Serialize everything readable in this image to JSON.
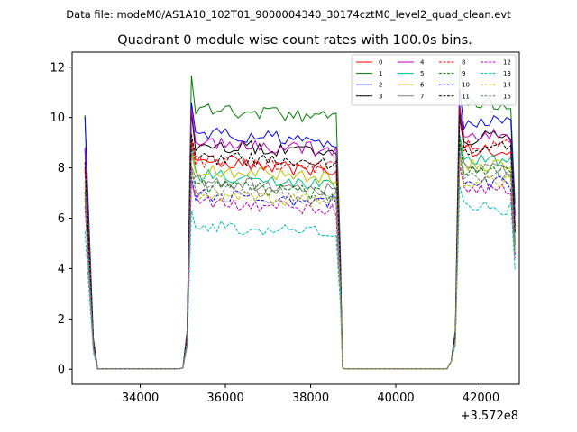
{
  "file_label": "Data file: modeM0/AS1A10_102T01_9000004340_30174cztM0_level2_quad_clean.evt",
  "chart_data": {
    "type": "line",
    "title": "Quadrant 0 module wise count rates with 100.0s bins.",
    "xlabel": "",
    "ylabel": "",
    "x_offset_label": "+3.572e8",
    "xlim": [
      32400,
      42900
    ],
    "ylim": [
      -0.6,
      12.6
    ],
    "xticks": [
      34000,
      36000,
      38000,
      40000,
      42000
    ],
    "xtick_labels": [
      "34000",
      "36000",
      "38000",
      "40000",
      "42000"
    ],
    "yticks": [
      0,
      2,
      4,
      6,
      8,
      10,
      12
    ],
    "ytick_labels": [
      "0",
      "2",
      "4",
      "6",
      "8",
      "10",
      "12"
    ],
    "grid": false,
    "legend_placement": "top-right",
    "segments": [
      {
        "start": 32700,
        "end": 35000,
        "ramp_bins": 3,
        "high_side": "start"
      },
      {
        "start": 35000,
        "end": 38750,
        "ramp_bins": 3,
        "high_side": "middle"
      },
      {
        "start": 38750,
        "end": 41300,
        "ramp_bins": 2,
        "high_side": "end"
      },
      {
        "start": 41300,
        "end": 42850,
        "ramp_bins": 2,
        "high_side": "middle"
      }
    ],
    "series": [
      {
        "name": "0",
        "color": "#ff0000",
        "dash": "solid",
        "level": 8.1,
        "level_end": 8.7
      },
      {
        "name": "1",
        "color": "#008000",
        "dash": "solid",
        "level": 10.3,
        "level_end": 10.6
      },
      {
        "name": "2",
        "color": "#0000ff",
        "dash": "solid",
        "level": 9.3,
        "level_end": 9.8
      },
      {
        "name": "3",
        "color": "#000000",
        "dash": "solid",
        "level": 8.9,
        "level_end": 9.2
      },
      {
        "name": "4",
        "color": "#bf00bf",
        "dash": "solid",
        "level": 9.0,
        "level_end": 9.3
      },
      {
        "name": "5",
        "color": "#00bf80",
        "dash": "solid",
        "level": 7.6,
        "level_end": 8.3
      },
      {
        "name": "6",
        "color": "#bfbf00",
        "dash": "solid",
        "level": 7.9,
        "level_end": 8.1
      },
      {
        "name": "7",
        "color": "#808080",
        "dash": "solid",
        "level": 7.4,
        "level_end": 8.0
      },
      {
        "name": "8",
        "color": "#ff0000",
        "dash": "dashed",
        "level": 8.2,
        "level_end": 8.9
      },
      {
        "name": "9",
        "color": "#008000",
        "dash": "dashed",
        "level": 7.2,
        "level_end": 7.9
      },
      {
        "name": "10",
        "color": "#0000ff",
        "dash": "dashed",
        "level": 6.9,
        "level_end": 7.4
      },
      {
        "name": "11",
        "color": "#000000",
        "dash": "dashed",
        "level": 8.4,
        "level_end": 8.8
      },
      {
        "name": "12",
        "color": "#bf00bf",
        "dash": "dashed",
        "level": 6.6,
        "level_end": 7.1
      },
      {
        "name": "13",
        "color": "#00bfbf",
        "dash": "dashed",
        "level": 5.6,
        "level_end": 6.4
      },
      {
        "name": "14",
        "color": "#bfbf00",
        "dash": "dashed",
        "level": 6.9,
        "level_end": 7.5
      },
      {
        "name": "15",
        "color": "#808080",
        "dash": "dashed",
        "level": 7.1,
        "level_end": 7.7
      }
    ]
  }
}
